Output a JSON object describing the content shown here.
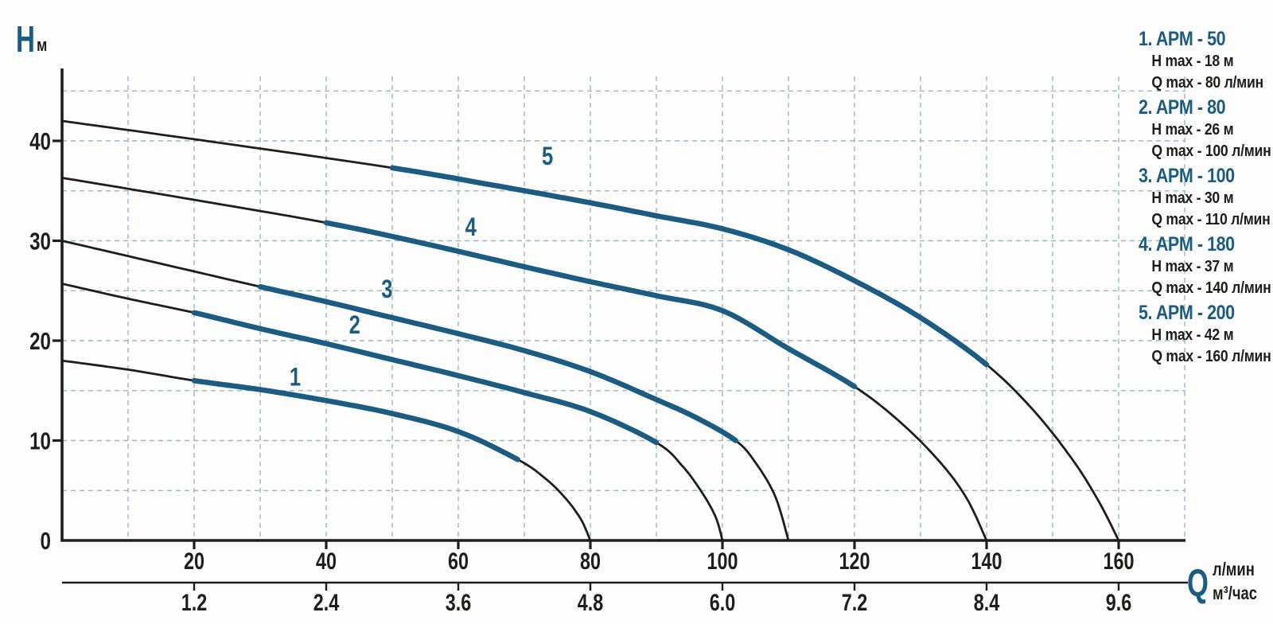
{
  "axis_titles": {
    "h_letter": "H",
    "h_unit": "м",
    "q_letter": "Q",
    "q_unit_top": "л/мин",
    "q_unit_bottom": "м³/час"
  },
  "colors": {
    "accent": "#1b5c82",
    "ink": "#1e1e1c",
    "grid": "#9fb6bc",
    "background": "#fdfdfd"
  },
  "chart_data": {
    "type": "line",
    "title": "",
    "xlabel": "Q",
    "ylabel": "H",
    "x_axis": {
      "units": [
        "л/мин",
        "м³/час"
      ],
      "range_lmin": [
        0,
        170
      ],
      "grid_step_lmin": 10,
      "ticks_lmin": [
        20,
        40,
        60,
        80,
        100,
        120,
        140,
        160
      ],
      "ticks_m3h": [
        "1.2",
        "2.4",
        "3.6",
        "4.8",
        "6.0",
        "7.2",
        "8.4",
        "9.6"
      ]
    },
    "y_axis": {
      "unit": "м",
      "range": [
        0,
        47
      ],
      "grid_step": 5,
      "ticks": [
        0,
        10,
        20,
        30,
        40
      ]
    },
    "grid": true,
    "legend_position": "right",
    "series": [
      {
        "label": "1",
        "name": "APM - 50",
        "h_max_m": 18,
        "q_max_lmin": 80,
        "bold_range": [
          20,
          69
        ],
        "label_pos": [
          35.3,
          15.5
        ],
        "points": [
          [
            0,
            18
          ],
          [
            10,
            17.1
          ],
          [
            20,
            16
          ],
          [
            30,
            15.1
          ],
          [
            40,
            14
          ],
          [
            50,
            12.7
          ],
          [
            60,
            10.9
          ],
          [
            69,
            8.1
          ],
          [
            73,
            6.3
          ],
          [
            76,
            4.4
          ],
          [
            78.5,
            2.2
          ],
          [
            80,
            0
          ]
        ]
      },
      {
        "label": "2",
        "name": "APM - 80",
        "h_max_m": 26,
        "q_max_lmin": 100,
        "bold_range": [
          20,
          90
        ],
        "label_pos": [
          44.3,
          20.7
        ],
        "points": [
          [
            0,
            25.7
          ],
          [
            10,
            24.2
          ],
          [
            20,
            22.8
          ],
          [
            30,
            21.2
          ],
          [
            40,
            19.7
          ],
          [
            50,
            18.1
          ],
          [
            60,
            16.5
          ],
          [
            70,
            14.8
          ],
          [
            80,
            12.9
          ],
          [
            90,
            9.8
          ],
          [
            94,
            7.4
          ],
          [
            97,
            4.7
          ],
          [
            99,
            2.3
          ],
          [
            100,
            0
          ]
        ]
      },
      {
        "label": "3",
        "name": "APM - 100",
        "h_max_m": 30,
        "q_max_lmin": 110,
        "bold_range": [
          30,
          102
        ],
        "label_pos": [
          49.2,
          24.3
        ],
        "points": [
          [
            0,
            30
          ],
          [
            15,
            27.7
          ],
          [
            30,
            25.4
          ],
          [
            40,
            23.9
          ],
          [
            50,
            22.3
          ],
          [
            60,
            20.7
          ],
          [
            70,
            19
          ],
          [
            80,
            16.9
          ],
          [
            90,
            14.1
          ],
          [
            96,
            12.3
          ],
          [
            102,
            10
          ],
          [
            105,
            7.8
          ],
          [
            108,
            4.4
          ],
          [
            110,
            0
          ]
        ]
      },
      {
        "label": "4",
        "name": "APM - 180",
        "h_max_m": 37,
        "q_max_lmin": 140,
        "bold_range": [
          40,
          120
        ],
        "label_pos": [
          61.9,
          30.5
        ],
        "points": [
          [
            0,
            36.3
          ],
          [
            20,
            34.1
          ],
          [
            40,
            31.8
          ],
          [
            55,
            29.7
          ],
          [
            70,
            27.4
          ],
          [
            80,
            25.9
          ],
          [
            90,
            24.5
          ],
          [
            100,
            23
          ],
          [
            110,
            19.2
          ],
          [
            120,
            15.4
          ],
          [
            127,
            11.8
          ],
          [
            133,
            7.8
          ],
          [
            137,
            4.2
          ],
          [
            140,
            0
          ]
        ]
      },
      {
        "label": "5",
        "name": "APM - 200",
        "h_max_m": 42,
        "q_max_lmin": 160,
        "bold_range": [
          50,
          140
        ],
        "label_pos": [
          73.5,
          37.6
        ],
        "points": [
          [
            0,
            42
          ],
          [
            25,
            39.7
          ],
          [
            50,
            37.3
          ],
          [
            65,
            35.6
          ],
          [
            80,
            33.8
          ],
          [
            90,
            32.5
          ],
          [
            100,
            31.2
          ],
          [
            110,
            29.1
          ],
          [
            120,
            26
          ],
          [
            130,
            22.3
          ],
          [
            140,
            17.6
          ],
          [
            147,
            13.1
          ],
          [
            153,
            8.1
          ],
          [
            157,
            3.9
          ],
          [
            160,
            0
          ]
        ]
      }
    ]
  },
  "legend": {
    "items": [
      {
        "title": "1. APM - 50",
        "lines": [
          "H max - 18 м",
          "Q max - 80 л/мин"
        ]
      },
      {
        "title": "2. APM - 80",
        "lines": [
          "H max - 26 м",
          "Q max - 100 л/мин"
        ]
      },
      {
        "title": "3. APM - 100",
        "lines": [
          "H max - 30 м",
          "Q max - 110 л/мин"
        ]
      },
      {
        "title": "4. APM - 180",
        "lines": [
          "H max - 37 м",
          "Q max - 140 л/мин"
        ]
      },
      {
        "title": "5. APM - 200",
        "lines": [
          "H max - 42 м",
          "Q max - 160 л/мин"
        ]
      }
    ]
  }
}
